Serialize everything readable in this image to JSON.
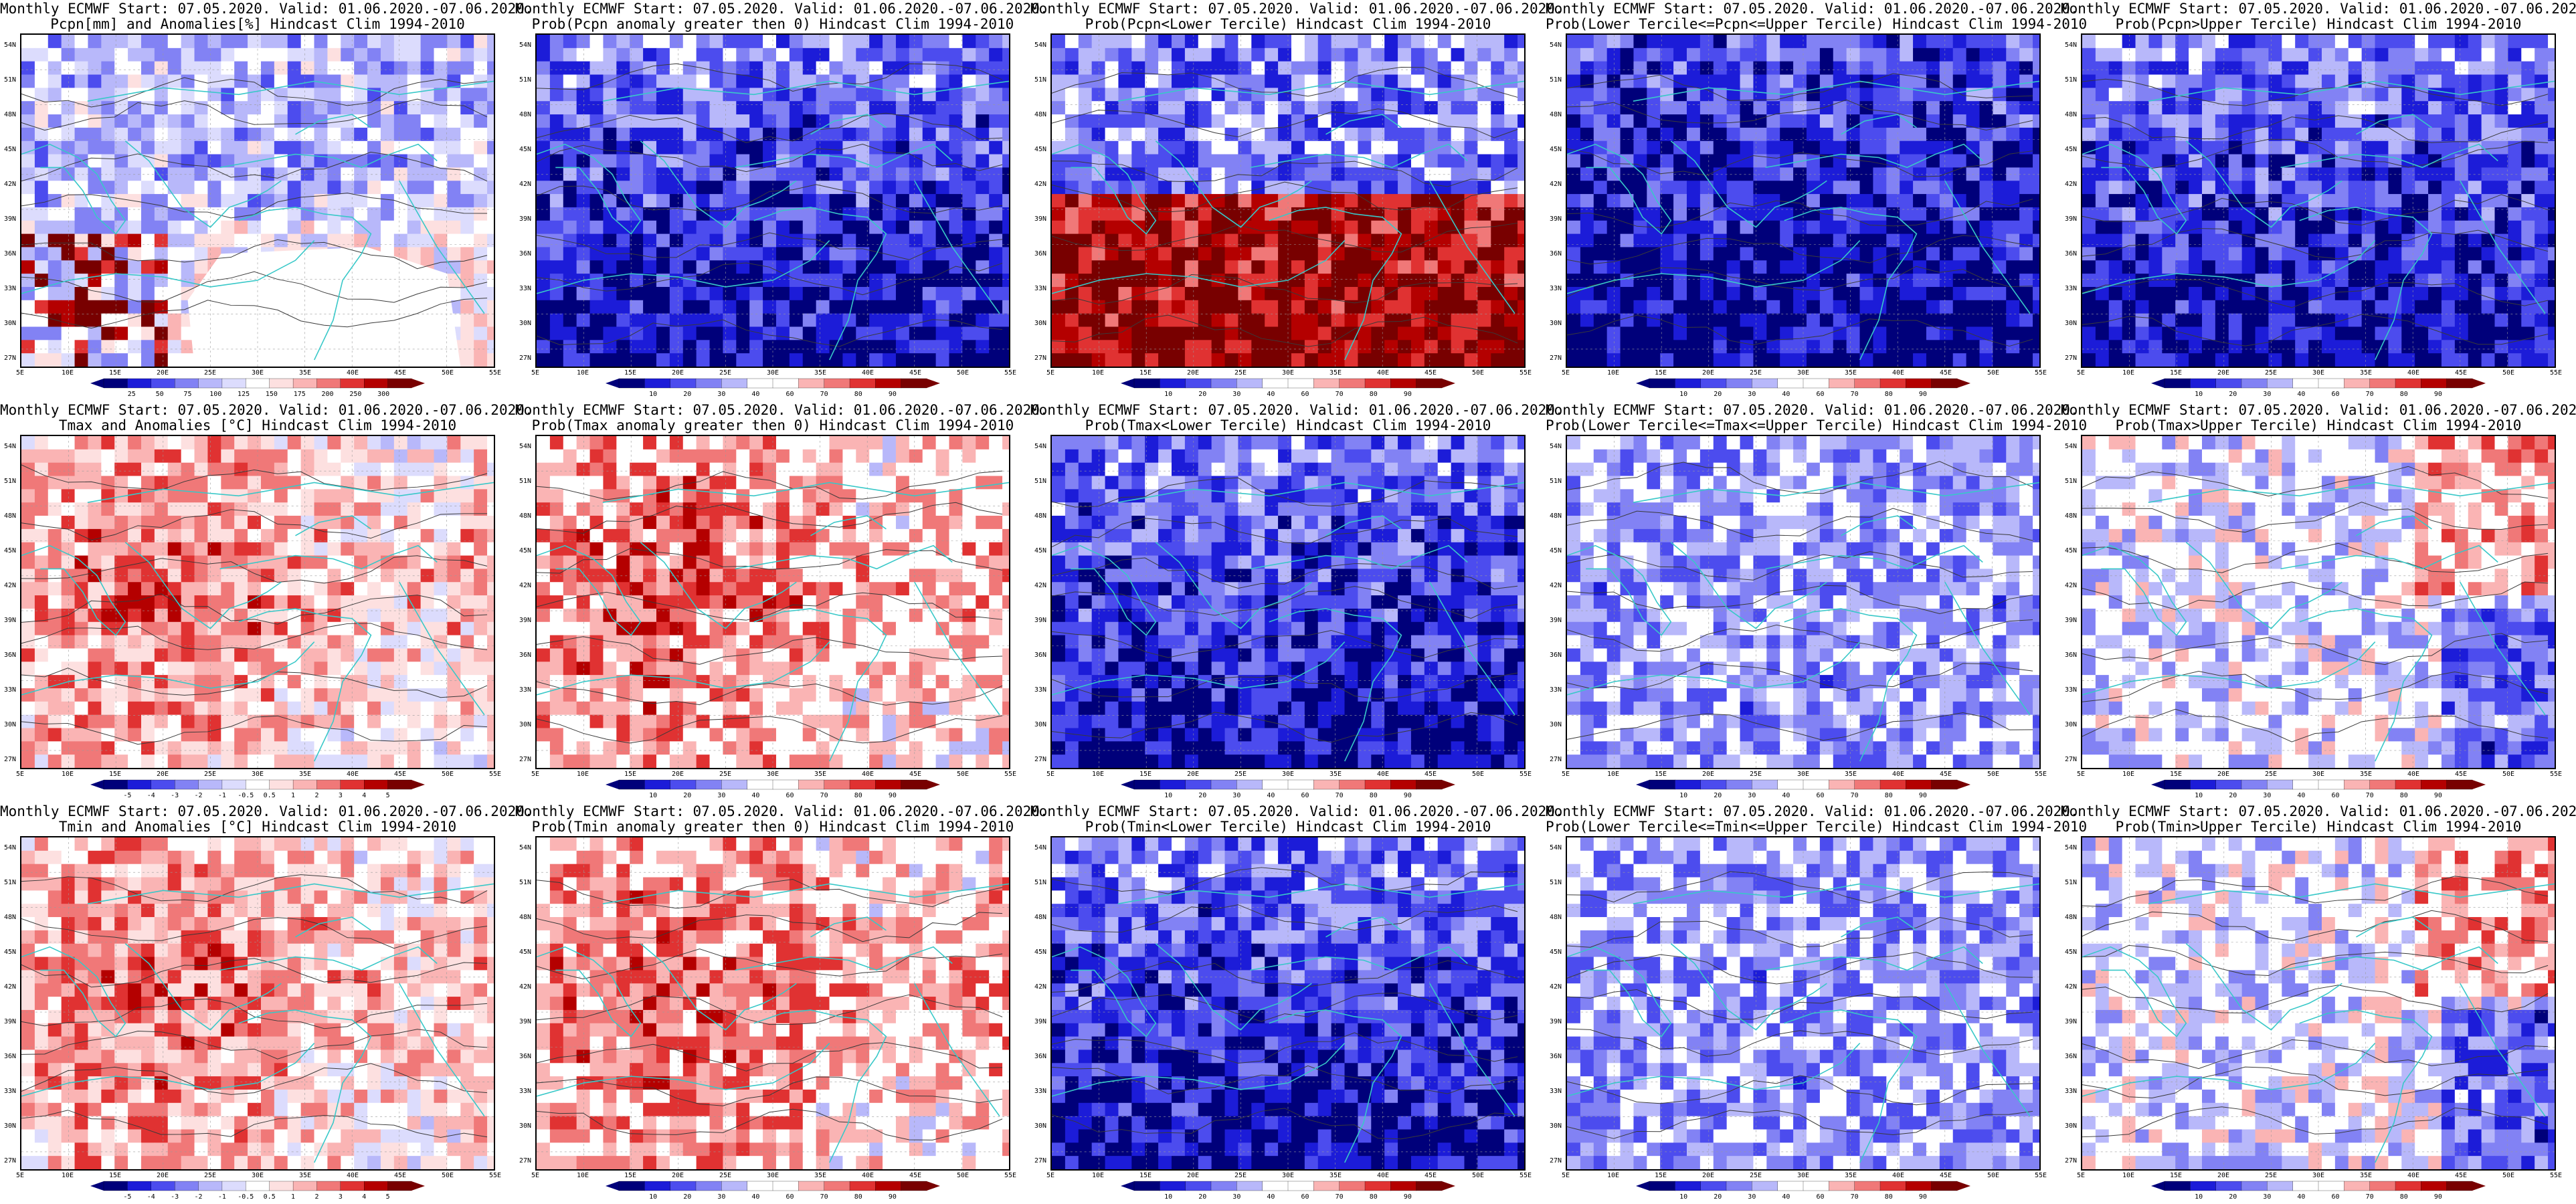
{
  "palettes": {
    "prob": [
      "#00007a",
      "#1c1cd8",
      "#4c4cee",
      "#8282f4",
      "#b8b8fa",
      "#ffffff",
      "#ffffff",
      "#fab4b4",
      "#f07878",
      "#e03232",
      "#b40000",
      "#780000"
    ],
    "anom": [
      "#00007a",
      "#1c1cd8",
      "#4c4cee",
      "#8282f4",
      "#b8b8fa",
      "#dcdcfd",
      "#ffffff",
      "#fde0e0",
      "#fab4b4",
      "#f07878",
      "#e03232",
      "#b40000",
      "#780000"
    ],
    "pcpn": [
      "#00007a",
      "#1c1cd8",
      "#4c4cee",
      "#8282f4",
      "#b8b8fa",
      "#dcdcfd",
      "#ffffff",
      "#fde0e0",
      "#fab4b4",
      "#f07878",
      "#e03232",
      "#b40000",
      "#780000"
    ],
    "coast": "#38c8c8",
    "contour": "#3a3a3a"
  },
  "axes": {
    "lat_labels": [
      "54N",
      "51N",
      "48N",
      "45N",
      "42N",
      "39N",
      "36N",
      "33N",
      "30N",
      "27N"
    ],
    "lon_labels": [
      "5E",
      "10E",
      "15E",
      "20E",
      "25E",
      "30E",
      "35E",
      "40E",
      "45E",
      "50E",
      "55E"
    ]
  },
  "colorbars": {
    "pcpn": [
      "25",
      "50",
      "75",
      "100",
      "125",
      "150",
      "175",
      "200",
      "250",
      "300"
    ],
    "prob": [
      "10",
      "20",
      "30",
      "40",
      "60",
      "70",
      "80",
      "90"
    ],
    "anom": [
      "-5",
      "-4",
      "-3",
      "-2",
      "-1",
      "-0.5",
      "0.5",
      "1",
      "2",
      "3",
      "4",
      "5"
    ]
  },
  "panels": [
    {
      "title1": "Monthly ECMWF Start: 07.05.2020. Valid: 01.06.2020.-07.06.2020.",
      "title2": "Pcpn[mm] and Anomalies[%] Hindcast Clim 1994-2010",
      "field": "pcpn",
      "bar": "pcpn",
      "level": "neutral"
    },
    {
      "title1": "Monthly ECMWF Start: 07.05.2020. Valid: 01.06.2020.-07.06.2020.",
      "title2": "Prob(Pcpn anomaly greater then 0) Hindcast Clim 1994-2010",
      "field": "prob",
      "bar": "prob",
      "level": "low"
    },
    {
      "title1": "Monthly ECMWF Start: 07.05.2020. Valid: 01.06.2020.-07.06.2020.",
      "title2": "Prob(Pcpn<Lower Tercile) Hindcast Clim 1994-2010",
      "field": "prob",
      "bar": "prob",
      "level": "highsouth"
    },
    {
      "title1": "Monthly ECMWF Start: 07.05.2020. Valid: 01.06.2020.-07.06.2020.",
      "title2": "Prob(Lower Tercile<=Pcpn<=Upper Tercile) Hindcast Clim 1994-2010",
      "field": "prob",
      "bar": "prob",
      "level": "verylow"
    },
    {
      "title1": "Monthly ECMWF Start: 07.05.2020. Valid: 01.06.2020.-07.06.2020.",
      "title2": "Prob(Pcpn>Upper Tercile) Hindcast Clim 1994-2010",
      "field": "prob",
      "bar": "prob",
      "level": "low"
    },
    {
      "title1": "Monthly ECMWF Start: 07.05.2020. Valid: 01.06.2020.-07.06.2020.",
      "title2": "Tmax and Anomalies [°C] Hindcast Clim 1994-2010",
      "field": "anom",
      "bar": "anom",
      "level": "warm"
    },
    {
      "title1": "Monthly ECMWF Start: 07.05.2020. Valid: 01.06.2020.-07.06.2020.",
      "title2": "Prob(Tmax anomaly greater then 0) Hindcast Clim 1994-2010",
      "field": "prob",
      "bar": "prob",
      "level": "warm"
    },
    {
      "title1": "Monthly ECMWF Start: 07.05.2020. Valid: 01.06.2020.-07.06.2020.",
      "title2": "Prob(Tmax<Lower Tercile) Hindcast Clim 1994-2010",
      "field": "prob",
      "bar": "prob",
      "level": "low"
    },
    {
      "title1": "Monthly ECMWF Start: 07.05.2020. Valid: 01.06.2020.-07.06.2020.",
      "title2": "Prob(Lower Tercile<=Tmax<=Upper Tercile) Hindcast Clim 1994-2010",
      "field": "prob",
      "bar": "prob",
      "level": "midlow"
    },
    {
      "title1": "Monthly ECMWF Start: 07.05.2020. Valid: 01.06.2020.-07.06.2020.",
      "title2": "Prob(Tmax>Upper Tercile) Hindcast Clim 1994-2010",
      "field": "prob",
      "bar": "prob",
      "level": "mixed"
    },
    {
      "title1": "Monthly ECMWF Start: 07.05.2020. Valid: 01.06.2020.-07.06.2020.",
      "title2": "Tmin and Anomalies [°C] Hindcast Clim 1994-2010",
      "field": "anom",
      "bar": "anom",
      "level": "warm"
    },
    {
      "title1": "Monthly ECMWF Start: 07.05.2020. Valid: 01.06.2020.-07.06.2020.",
      "title2": "Prob(Tmin anomaly greater then 0) Hindcast Clim 1994-2010",
      "field": "prob",
      "bar": "prob",
      "level": "warm"
    },
    {
      "title1": "Monthly ECMWF Start: 07.05.2020. Valid: 01.06.2020.-07.06.2020.",
      "title2": "Prob(Tmin<Lower Tercile) Hindcast Clim 1994-2010",
      "field": "prob",
      "bar": "prob",
      "level": "low"
    },
    {
      "title1": "Monthly ECMWF Start: 07.05.2020. Valid: 01.06.2020.-07.06.2020.",
      "title2": "Prob(Lower Tercile<=Tmin<=Upper Tercile) Hindcast Clim 1994-2010",
      "field": "prob",
      "bar": "prob",
      "level": "midlow"
    },
    {
      "title1": "Monthly ECMWF Start: 07.05.2020. Valid: 01.06.2020.-07.06.2020.",
      "title2": "Prob(Tmin>Upper Tercile) Hindcast Clim 1994-2010",
      "field": "prob",
      "bar": "prob",
      "level": "mixed"
    }
  ]
}
